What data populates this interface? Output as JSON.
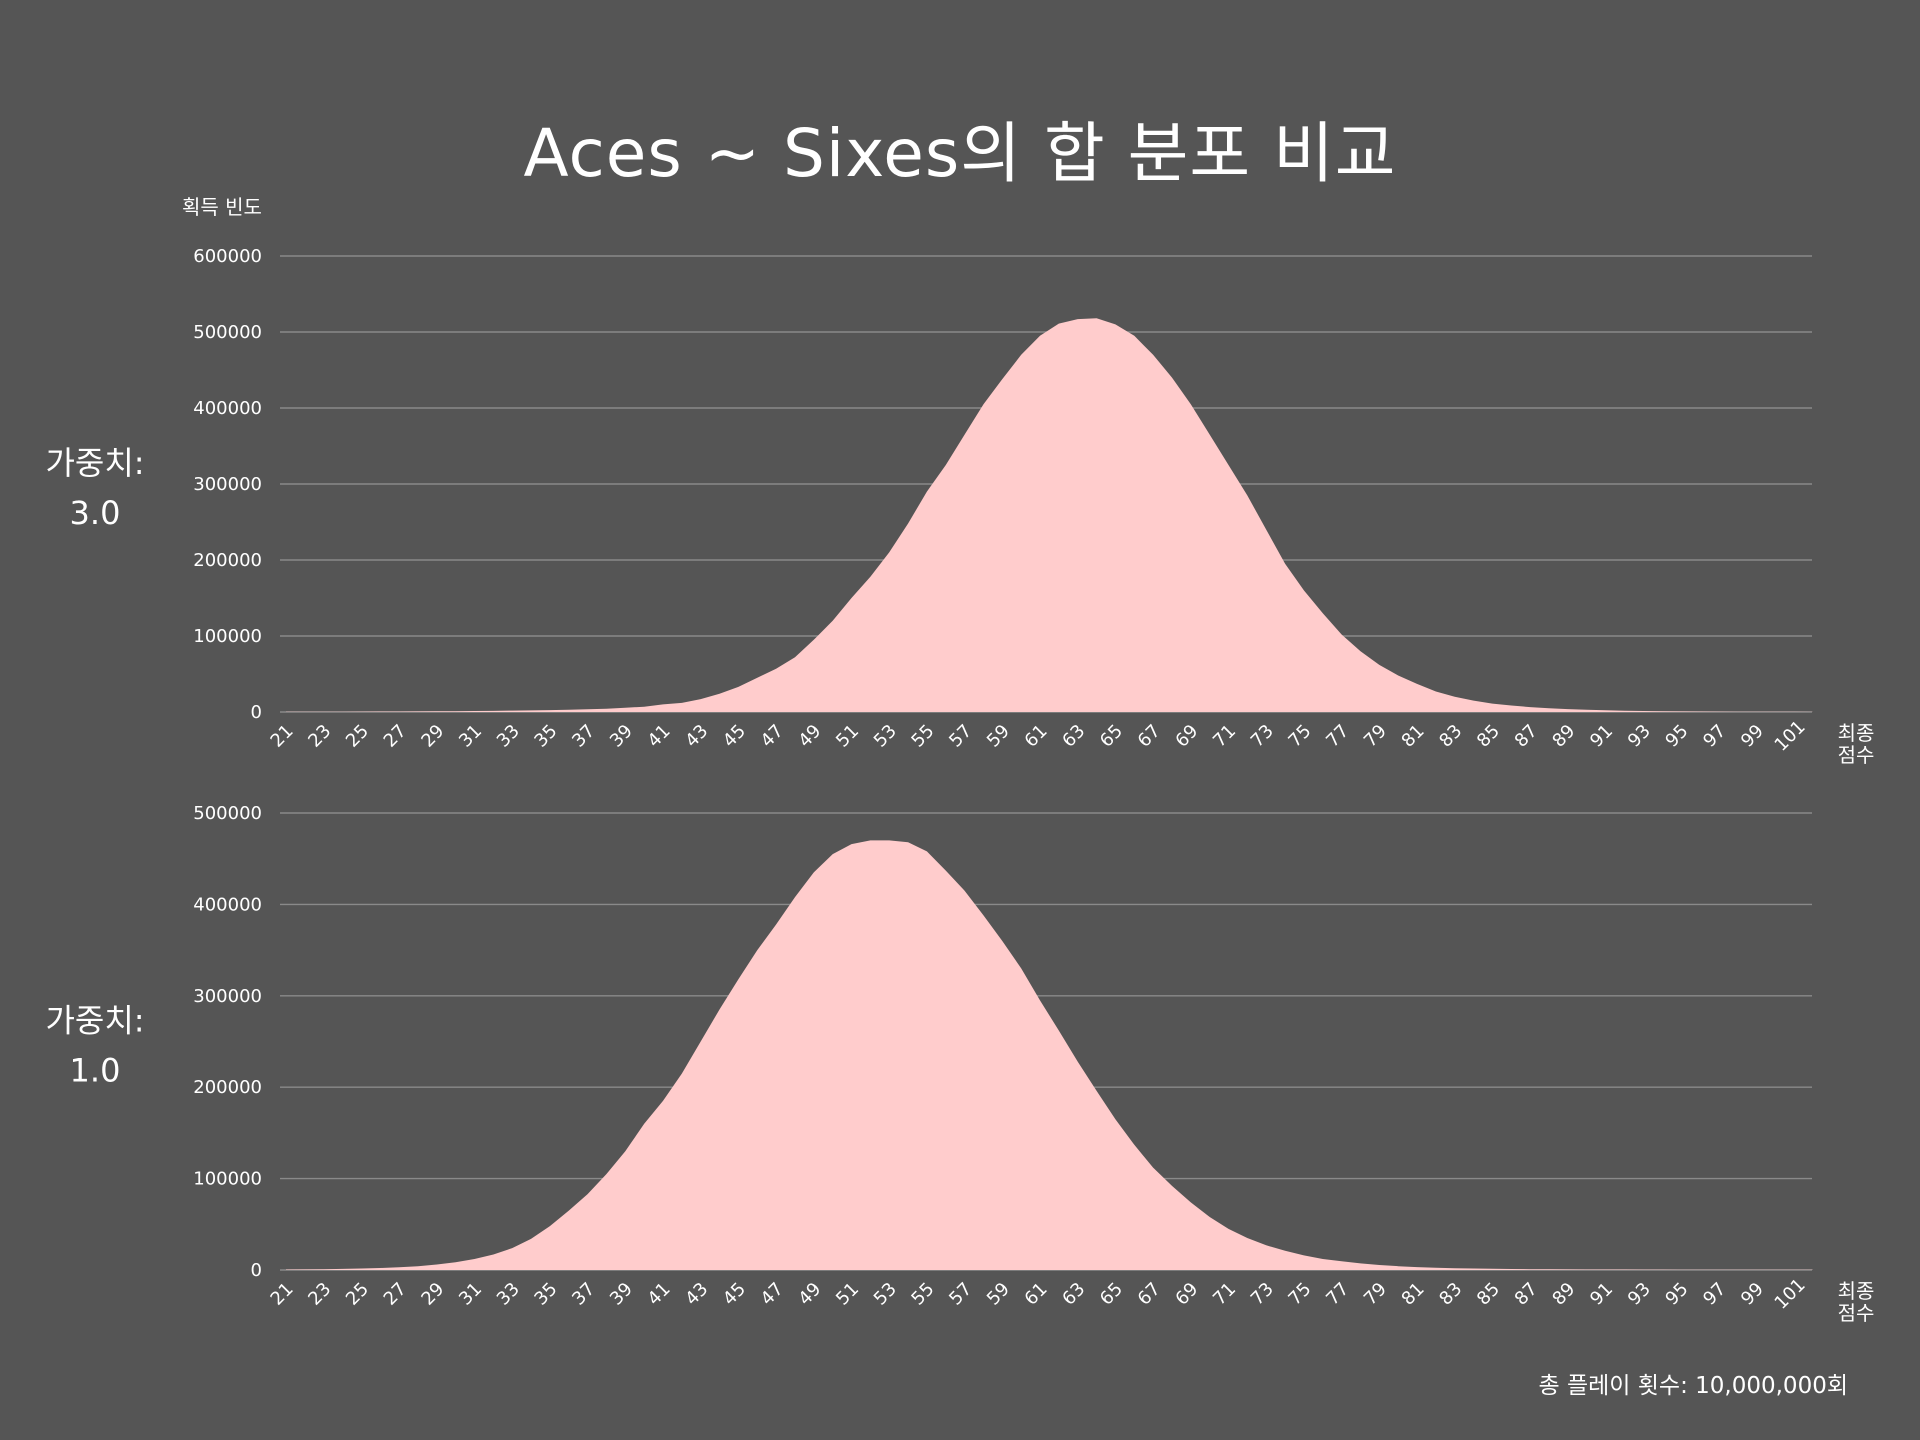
{
  "chart_data": {
    "type": "area",
    "title": "Aces ~ Sixes의 합 분포 비교",
    "ylabel": "획득 빈도",
    "xlabel": [
      "최종",
      "점수"
    ],
    "footnote": "총 플레이 횟수: 10,000,000회",
    "x_tick_step": 2,
    "colors": {
      "background": "#555555",
      "area": "#ffcccc",
      "grid": "#8a8a8a",
      "text": "#ffffff"
    },
    "grid": true,
    "panels": [
      {
        "label": [
          "가중치:",
          "3.0"
        ],
        "ylim": [
          0,
          600000
        ],
        "yticks": [
          0,
          100000,
          200000,
          300000,
          400000,
          500000,
          600000
        ],
        "x": [
          21,
          22,
          23,
          24,
          25,
          26,
          27,
          28,
          29,
          30,
          31,
          32,
          33,
          34,
          35,
          36,
          37,
          38,
          39,
          40,
          41,
          42,
          43,
          44,
          45,
          46,
          47,
          48,
          49,
          50,
          51,
          52,
          53,
          54,
          55,
          56,
          57,
          58,
          59,
          60,
          61,
          62,
          63,
          64,
          65,
          66,
          67,
          68,
          69,
          70,
          71,
          72,
          73,
          74,
          75,
          76,
          77,
          78,
          79,
          80,
          81,
          82,
          83,
          84,
          85,
          86,
          87,
          88,
          89,
          90,
          91,
          92,
          93,
          94,
          95,
          96,
          97,
          98,
          99,
          100,
          101,
          102
        ],
        "values": [
          300,
          350,
          400,
          450,
          500,
          600,
          700,
          800,
          900,
          1100,
          1300,
          1500,
          1800,
          2100,
          2500,
          3000,
          3600,
          4400,
          5500,
          7000,
          10000,
          12000,
          17000,
          24000,
          33000,
          45000,
          57000,
          72000,
          95000,
          120000,
          150000,
          178000,
          210000,
          248000,
          290000,
          325000,
          365000,
          405000,
          438000,
          470000,
          495000,
          511000,
          517000,
          518000,
          510000,
          495000,
          470000,
          440000,
          405000,
          365000,
          325000,
          285000,
          240000,
          195000,
          160000,
          130000,
          102000,
          80000,
          62000,
          48000,
          37000,
          27000,
          20000,
          15000,
          11000,
          8500,
          6500,
          5000,
          3800,
          2900,
          2200,
          1700,
          1300,
          1000,
          800,
          650,
          500,
          400,
          300,
          250,
          200,
          150
        ]
      },
      {
        "label": [
          "가중치:",
          "1.0"
        ],
        "ylim": [
          0,
          500000
        ],
        "yticks": [
          0,
          100000,
          200000,
          300000,
          400000,
          500000
        ],
        "x": [
          21,
          22,
          23,
          24,
          25,
          26,
          27,
          28,
          29,
          30,
          31,
          32,
          33,
          34,
          35,
          36,
          37,
          38,
          39,
          40,
          41,
          42,
          43,
          44,
          45,
          46,
          47,
          48,
          49,
          50,
          51,
          52,
          53,
          54,
          55,
          56,
          57,
          58,
          59,
          60,
          61,
          62,
          63,
          64,
          65,
          66,
          67,
          68,
          69,
          70,
          71,
          72,
          73,
          74,
          75,
          76,
          77,
          78,
          79,
          80,
          81,
          82,
          83,
          84,
          85,
          86,
          87,
          88,
          89,
          90,
          91,
          92,
          93,
          94,
          95,
          96,
          97,
          98,
          99,
          100,
          101,
          102
        ],
        "values": [
          500,
          700,
          900,
          1200,
          1600,
          2200,
          3000,
          4200,
          6000,
          8500,
          12000,
          17000,
          24000,
          34000,
          48000,
          65000,
          83000,
          105000,
          130000,
          160000,
          185000,
          215000,
          250000,
          285000,
          318000,
          350000,
          378000,
          408000,
          435000,
          455000,
          466000,
          470000,
          470000,
          468000,
          458000,
          437000,
          415000,
          388000,
          360000,
          330000,
          295000,
          262000,
          228000,
          196000,
          165000,
          137000,
          112000,
          92000,
          74000,
          58000,
          45000,
          35000,
          27000,
          21000,
          16000,
          12000,
          9500,
          7200,
          5500,
          4200,
          3200,
          2500,
          2000,
          1600,
          1300,
          1100,
          900,
          800,
          700,
          600,
          550,
          500,
          450,
          400,
          380,
          360,
          340,
          320,
          300,
          280,
          260,
          250
        ]
      }
    ]
  }
}
